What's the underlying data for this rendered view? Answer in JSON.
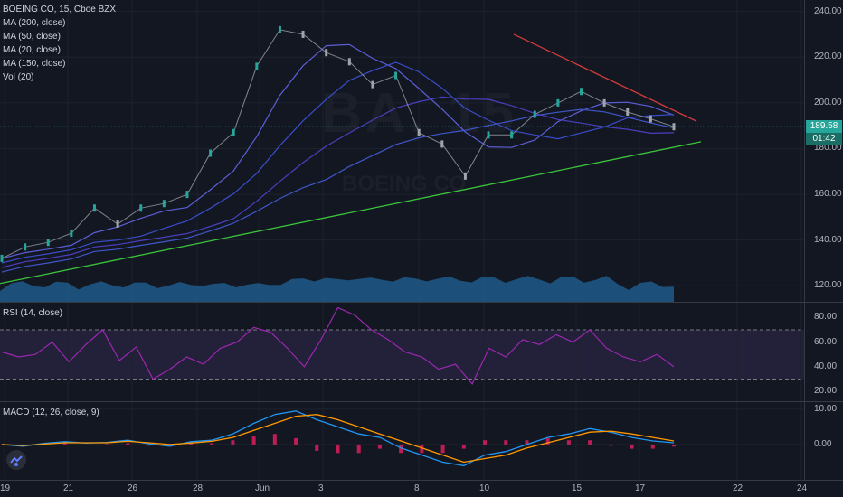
{
  "legend": {
    "title": "BOEING CO, 15, Cboe BZX",
    "ma200": "MA (200, close)",
    "ma50": "MA (50, close)",
    "ma20": "MA (20, close)",
    "ma150": "MA (150, close)",
    "vol": "Vol (20)"
  },
  "watermark": {
    "symbol": "BA, 15",
    "name": "BOEING CO"
  },
  "rsi_legend": "RSI (14, close)",
  "macd_legend": "MACD (12, 26, close, 9)",
  "price_tag": {
    "value": "189.58",
    "countdown": "01:42",
    "color": "#26a69a"
  },
  "colors": {
    "background": "#131722",
    "ma": "#3a4dc9",
    "ma2": "#5b5fd6",
    "trend_up": "#3bc43b",
    "trend_down": "#d43b3b",
    "volume": "#1f5b8a",
    "rsi": "#9c27b0",
    "macd": "#2196f3",
    "signal": "#ff9800",
    "hist": "#e91e63"
  },
  "icons": {
    "logo": "tradingview-logo-icon"
  },
  "chart_data": [
    {
      "type": "line",
      "title": "BOEING CO, 15, Cboe BZX",
      "y_ticks": [
        "240.00",
        "220.00",
        "200.00",
        "180.00",
        "160.00",
        "140.00",
        "120.00"
      ],
      "y_tick_values": [
        240,
        220,
        200,
        180,
        160,
        140,
        120
      ],
      "ylim": [
        113,
        245
      ],
      "x_ticks": [
        "19",
        "21",
        "26",
        "28",
        "Jun",
        "3",
        "8",
        "10",
        "15",
        "17",
        "22",
        "24"
      ],
      "last_price": 189.58,
      "close": [
        {
          "x": "19",
          "y": 132
        },
        {
          "x": "21",
          "y": 137
        },
        {
          "x": "21b",
          "y": 139
        },
        {
          "x": "26",
          "y": 143
        },
        {
          "x": "28",
          "y": 154
        },
        {
          "x": "28b",
          "y": 147
        },
        {
          "x": "Jun",
          "y": 154
        },
        {
          "x": "Jun b",
          "y": 156
        },
        {
          "x": "3",
          "y": 160
        },
        {
          "x": "3b",
          "y": 178
        },
        {
          "x": "3c",
          "y": 187
        },
        {
          "x": "8a",
          "y": 216
        },
        {
          "x": "8b",
          "y": 232
        },
        {
          "x": "8c",
          "y": 230
        },
        {
          "x": "8d",
          "y": 222
        },
        {
          "x": "8e",
          "y": 218
        },
        {
          "x": "10a",
          "y": 208
        },
        {
          "x": "10b",
          "y": 212
        },
        {
          "x": "10c",
          "y": 187
        },
        {
          "x": "10d",
          "y": 182
        },
        {
          "x": "10e",
          "y": 168
        },
        {
          "x": "10f",
          "y": 186
        },
        {
          "x": "15a",
          "y": 186
        },
        {
          "x": "15b",
          "y": 195
        },
        {
          "x": "15c",
          "y": 200
        },
        {
          "x": "15d",
          "y": 205
        },
        {
          "x": "17a",
          "y": 200
        },
        {
          "x": "17b",
          "y": 196
        },
        {
          "x": "17c",
          "y": 193
        },
        {
          "x": "17d",
          "y": 189.58
        }
      ],
      "trendlines": [
        {
          "name": "support",
          "from": {
            "x": "19",
            "y": 121
          },
          "to": {
            "x": "22",
            "y": 183
          }
        },
        {
          "name": "resistance",
          "from": {
            "x": "10",
            "y": 230
          },
          "to": {
            "x": "22",
            "y": 192
          }
        }
      ],
      "volume_label": "Vol (20)"
    },
    {
      "type": "line",
      "title": "RSI (14, close)",
      "y_ticks": [
        "80.00",
        "60.00",
        "40.00",
        "20.00"
      ],
      "y_tick_values": [
        80,
        60,
        40,
        20
      ],
      "ylim": [
        12,
        92
      ],
      "bands": [
        70,
        30
      ],
      "values": [
        52,
        48,
        50,
        60,
        44,
        58,
        70,
        45,
        56,
        30,
        38,
        48,
        42,
        55,
        60,
        72,
        68,
        55,
        40,
        62,
        88,
        82,
        70,
        62,
        52,
        48,
        38,
        42,
        26,
        55,
        48,
        62,
        58,
        66,
        60,
        70,
        55,
        48,
        44,
        50,
        40
      ]
    },
    {
      "type": "line",
      "title": "MACD (12, 26, close, 9)",
      "y_ticks": [
        "10.00",
        "0.00"
      ],
      "y_tick_values": [
        10,
        0
      ],
      "ylim": [
        -10,
        12
      ],
      "macd": [
        0,
        -0.5,
        0.3,
        0.8,
        0.4,
        0.6,
        1.2,
        0.2,
        -0.5,
        0.8,
        1.2,
        3,
        6,
        8.5,
        9.5,
        7,
        5,
        3,
        2,
        -1,
        -3,
        -5,
        -6,
        -3,
        -2,
        0,
        2,
        3,
        4.5,
        3.5,
        2,
        1,
        0.5
      ],
      "signal": [
        0,
        -0.3,
        0.1,
        0.5,
        0.5,
        0.5,
        0.9,
        0.5,
        0,
        0.4,
        0.9,
        2,
        4,
        6,
        8,
        8.5,
        7,
        5,
        3,
        1,
        -1,
        -3,
        -5,
        -4,
        -3,
        -1,
        0.5,
        2,
        3.5,
        3.8,
        3,
        2,
        1
      ]
    }
  ]
}
